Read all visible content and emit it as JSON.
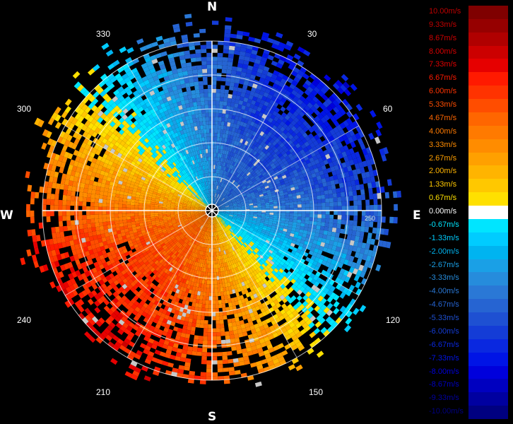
{
  "radar": {
    "center": "",
    "cardinals": {
      "north": "N",
      "south": "S",
      "east": "E",
      "west": "W"
    },
    "degrees": [
      "30",
      "60",
      "120",
      "150",
      "210",
      "240",
      "300",
      "330"
    ],
    "range_label": "250",
    "colors": {
      "positive_ring": "#e07020",
      "negative_ring": "#1a7ad8"
    }
  },
  "legend": {
    "items": [
      {
        "label": "10.00m/s",
        "color": "#7f0000",
        "text_color": "#c00000"
      },
      {
        "label": "9.33m/s",
        "color": "#960000",
        "text_color": "#c00000"
      },
      {
        "label": "8.67m/s",
        "color": "#b00000",
        "text_color": "#d00000"
      },
      {
        "label": "8.00m/s",
        "color": "#cc0000",
        "text_color": "#d80000"
      },
      {
        "label": "7.33m/s",
        "color": "#e60000",
        "text_color": "#e00000"
      },
      {
        "label": "6.67m/s",
        "color": "#ff1a00",
        "text_color": "#ff1a00"
      },
      {
        "label": "6.00m/s",
        "color": "#ff3300",
        "text_color": "#ff3300"
      },
      {
        "label": "5.33m/s",
        "color": "#ff4d00",
        "text_color": "#ff4d00"
      },
      {
        "label": "4.67m/s",
        "color": "#ff6600",
        "text_color": "#ff6600"
      },
      {
        "label": "4.00m/s",
        "color": "#ff7a00",
        "text_color": "#ff7a00"
      },
      {
        "label": "3.33m/s",
        "color": "#ff8c00",
        "text_color": "#ff8c00"
      },
      {
        "label": "2.67m/s",
        "color": "#ffa000",
        "text_color": "#ffa000"
      },
      {
        "label": "2.00m/s",
        "color": "#ffb400",
        "text_color": "#ffb400"
      },
      {
        "label": "1.33m/s",
        "color": "#ffc800",
        "text_color": "#ffc800"
      },
      {
        "label": "0.67m/s",
        "color": "#ffe000",
        "text_color": "#ffe000"
      },
      {
        "label": "0.00m/s",
        "color": "#ffffff",
        "text_color": "#ffffff"
      },
      {
        "label": "-0.67m/s",
        "color": "#00e5ff",
        "text_color": "#00e5ff"
      },
      {
        "label": "-1.33m/s",
        "color": "#00ccff",
        "text_color": "#00ccff"
      },
      {
        "label": "-2.00m/s",
        "color": "#00b4f0",
        "text_color": "#00b4f0"
      },
      {
        "label": "-2.67m/s",
        "color": "#1aa0e6",
        "text_color": "#1aa0e6"
      },
      {
        "label": "-3.33m/s",
        "color": "#268cdc",
        "text_color": "#268cdc"
      },
      {
        "label": "-4.00m/s",
        "color": "#2a78d6",
        "text_color": "#2a78d6"
      },
      {
        "label": "-4.67m/s",
        "color": "#2664d2",
        "text_color": "#2664d2"
      },
      {
        "label": "-5.33m/s",
        "color": "#1e50d2",
        "text_color": "#1e50d2"
      },
      {
        "label": "-6.00m/s",
        "color": "#143cd6",
        "text_color": "#143cd6"
      },
      {
        "label": "-6.67m/s",
        "color": "#0a28e0",
        "text_color": "#0a28e0"
      },
      {
        "label": "-7.33m/s",
        "color": "#0014e6",
        "text_color": "#0014e6"
      },
      {
        "label": "-8.00m/s",
        "color": "#0000dc",
        "text_color": "#0000dc"
      },
      {
        "label": "-8.67m/s",
        "color": "#0000c0",
        "text_color": "#0000c0"
      },
      {
        "label": "-9.33m/s",
        "color": "#0000a0",
        "text_color": "#0000a0"
      },
      {
        "label": "-10.00m/s",
        "color": "#000080",
        "text_color": "#000080"
      }
    ]
  }
}
